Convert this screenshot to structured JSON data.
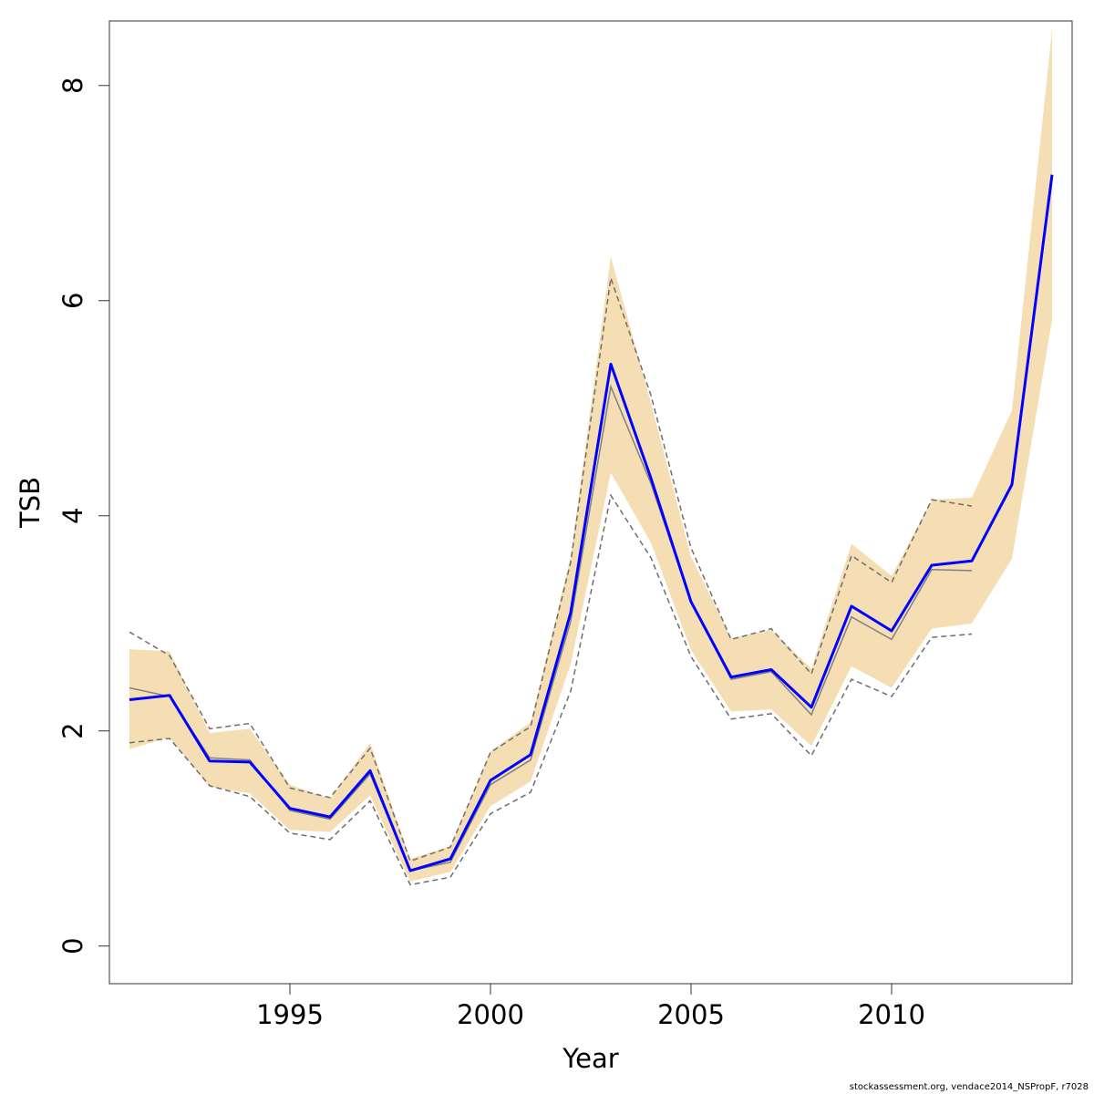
{
  "footer_text": "stockassessment.org, vendace2014_NSPropF, r7028",
  "chart_data": {
    "type": "line",
    "title": "",
    "xlabel": "Year",
    "ylabel": "TSB",
    "xlim": [
      1990.5,
      2014.5
    ],
    "ylim": [
      -0.35,
      8.6
    ],
    "xticks": [
      1995,
      2000,
      2005,
      2010
    ],
    "yticks": [
      0,
      2,
      4,
      6,
      8
    ],
    "grid": false,
    "legend": "none",
    "colors": {
      "band": "#f5deb3",
      "estimate": "#0000ff",
      "previous": "#808080",
      "previous_ci": "#6e6e6e"
    },
    "x": [
      1991,
      1992,
      1993,
      1994,
      1995,
      1996,
      1997,
      1998,
      1999,
      2000,
      2001,
      2002,
      2003,
      2004,
      2005,
      2006,
      2007,
      2008,
      2009,
      2010,
      2011,
      2012,
      2013,
      2014
    ],
    "series": [
      {
        "role": "estimate",
        "style": "line",
        "values": [
          2.29,
          2.33,
          1.72,
          1.71,
          1.28,
          1.2,
          1.63,
          0.7,
          0.81,
          1.54,
          1.78,
          3.1,
          5.41,
          4.35,
          3.2,
          2.5,
          2.57,
          2.22,
          3.16,
          2.93,
          3.54,
          3.58,
          4.29,
          7.17
        ]
      },
      {
        "role": "band",
        "style": "area",
        "lower": [
          1.83,
          1.94,
          1.48,
          1.42,
          1.08,
          1.06,
          1.4,
          0.6,
          0.69,
          1.3,
          1.53,
          2.62,
          4.4,
          3.75,
          2.75,
          2.18,
          2.2,
          1.86,
          2.6,
          2.4,
          2.95,
          3.0,
          3.6,
          5.82
        ],
        "upper": [
          2.76,
          2.74,
          1.98,
          2.02,
          1.5,
          1.37,
          1.89,
          0.81,
          0.93,
          1.81,
          2.08,
          3.62,
          6.41,
          5.05,
          3.62,
          2.86,
          2.94,
          2.58,
          3.74,
          3.44,
          4.15,
          4.17,
          4.98,
          8.52
        ]
      },
      {
        "role": "previous",
        "style": "thin-line",
        "x": [
          1991,
          1992,
          1993,
          1994,
          1995,
          1996,
          1997,
          1998,
          1999,
          2000,
          2001,
          2002,
          2003,
          2004,
          2005,
          2006,
          2007,
          2008,
          2009,
          2010,
          2011,
          2012
        ],
        "values": [
          2.4,
          2.32,
          1.75,
          1.73,
          1.26,
          1.18,
          1.6,
          0.7,
          0.78,
          1.5,
          1.73,
          3.02,
          5.2,
          4.3,
          3.2,
          2.48,
          2.55,
          2.15,
          3.06,
          2.85,
          3.5,
          3.49
        ]
      },
      {
        "role": "previous_upper",
        "style": "dashed",
        "x": [
          1991,
          1992,
          1993,
          1994,
          1995,
          1996,
          1997,
          1998,
          1999,
          2000,
          2001,
          2002,
          2003,
          2004,
          2005,
          2006,
          2007,
          2008,
          2009,
          2010,
          2011,
          2012
        ],
        "values": [
          2.92,
          2.7,
          2.02,
          2.07,
          1.47,
          1.38,
          1.84,
          0.79,
          0.92,
          1.8,
          2.04,
          3.57,
          6.21,
          5.12,
          3.7,
          2.85,
          2.95,
          2.53,
          3.63,
          3.38,
          4.15,
          4.09
        ]
      },
      {
        "role": "previous_lower",
        "style": "dashed",
        "x": [
          1991,
          1992,
          1993,
          1994,
          1995,
          1996,
          1997,
          1998,
          1999,
          2000,
          2001,
          2002,
          2003,
          2004,
          2005,
          2006,
          2007,
          2008,
          2009,
          2010,
          2011,
          2012
        ],
        "values": [
          1.89,
          1.93,
          1.49,
          1.39,
          1.05,
          0.99,
          1.35,
          0.57,
          0.64,
          1.23,
          1.43,
          2.37,
          4.19,
          3.61,
          2.69,
          2.11,
          2.16,
          1.77,
          2.48,
          2.32,
          2.87,
          2.9
        ]
      }
    ]
  }
}
